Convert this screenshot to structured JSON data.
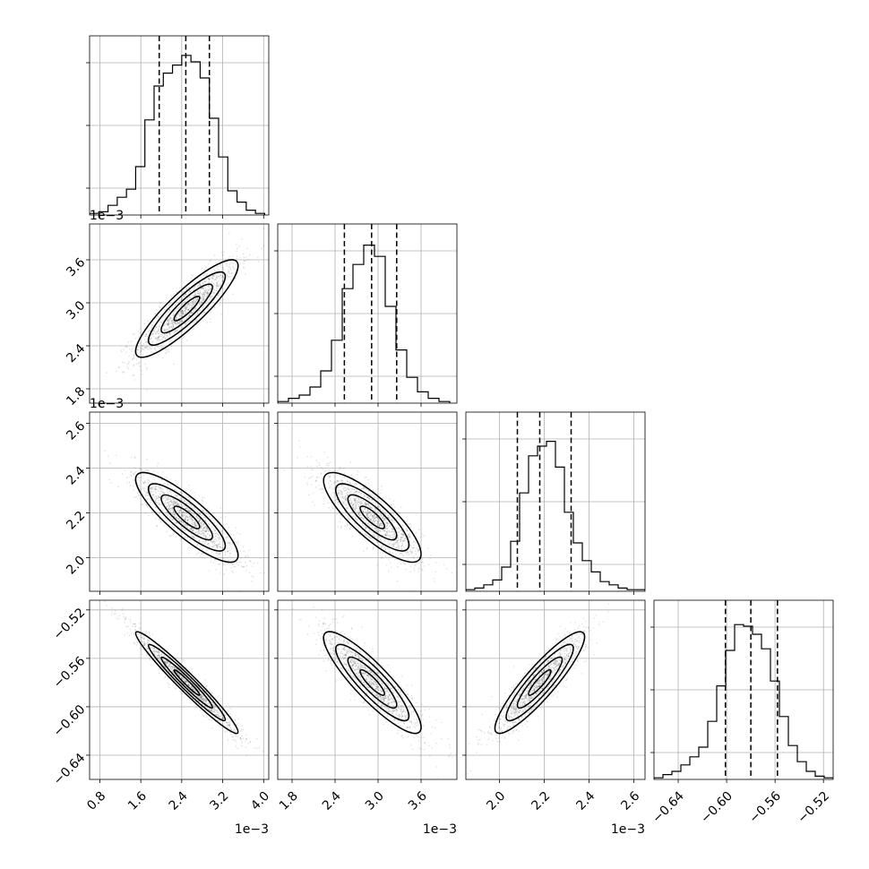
{
  "chart_data": {
    "type": "corner",
    "params": [
      {
        "ticks": [
          0.8,
          1.6,
          2.4,
          3.2,
          4.0
        ],
        "tick_labels": [
          "0.8",
          "1.6",
          "2.4",
          "3.2",
          "4.0"
        ],
        "offset_label": "1e−3"
      },
      {
        "ticks": [
          1.8,
          2.4,
          3.0,
          3.6
        ],
        "tick_labels": [
          "1.8",
          "2.4",
          "3.0",
          "3.6"
        ],
        "offset_label": "1e−3"
      },
      {
        "ticks": [
          2.0,
          2.2,
          2.4,
          2.6
        ],
        "tick_labels": [
          "2.0",
          "2.2",
          "2.4",
          "2.6"
        ],
        "offset_label": "1e−3"
      },
      {
        "ticks": [
          -0.64,
          -0.6,
          -0.56,
          -0.52
        ],
        "tick_labels": [
          "−0.64",
          "−0.60",
          "−0.56",
          "−0.52"
        ],
        "offset_label": ""
      }
    ],
    "ranges": [
      [
        0.6,
        4.1
      ],
      [
        1.6,
        4.1
      ],
      [
        1.85,
        2.65
      ],
      [
        -0.66,
        -0.512
      ]
    ],
    "histograms": [
      {
        "edges": [
          0.6,
          0.78,
          0.96,
          1.14,
          1.32,
          1.5,
          1.68,
          1.86,
          2.04,
          2.22,
          2.4,
          2.58,
          2.76,
          2.94,
          3.12,
          3.3,
          3.48,
          3.66,
          3.84,
          4.02
        ],
        "counts": [
          0.01,
          0.02,
          0.06,
          0.11,
          0.16,
          0.3,
          0.59,
          0.8,
          0.88,
          0.93,
          0.99,
          0.95,
          0.85,
          0.6,
          0.36,
          0.15,
          0.08,
          0.03,
          0.01
        ],
        "quantiles": [
          1.96,
          2.48,
          2.94
        ]
      },
      {
        "edges": [
          1.6,
          1.75,
          1.9,
          2.05,
          2.2,
          2.35,
          2.5,
          2.65,
          2.8,
          2.95,
          3.1,
          3.25,
          3.4,
          3.55,
          3.7,
          3.85,
          4.0
        ],
        "counts": [
          0.01,
          0.03,
          0.05,
          0.1,
          0.2,
          0.39,
          0.71,
          0.86,
          0.98,
          0.91,
          0.6,
          0.33,
          0.16,
          0.07,
          0.03,
          0.01
        ],
        "quantiles": [
          2.53,
          2.91,
          3.26
        ]
      },
      {
        "edges": [
          1.85,
          1.89,
          1.93,
          1.97,
          2.01,
          2.05,
          2.09,
          2.13,
          2.17,
          2.21,
          2.25,
          2.29,
          2.33,
          2.37,
          2.41,
          2.45,
          2.49,
          2.53,
          2.57,
          2.61,
          2.65
        ],
        "counts": [
          0.01,
          0.02,
          0.04,
          0.07,
          0.15,
          0.31,
          0.61,
          0.84,
          0.9,
          0.93,
          0.77,
          0.49,
          0.3,
          0.19,
          0.12,
          0.06,
          0.04,
          0.02,
          0.01,
          0.01
        ],
        "quantiles": [
          2.08,
          2.18,
          2.32
        ]
      },
      {
        "edges": [
          -0.66,
          -0.6526,
          -0.6452,
          -0.6378,
          -0.6304,
          -0.623,
          -0.6156,
          -0.6082,
          -0.6008,
          -0.5934,
          -0.586,
          -0.5786,
          -0.5712,
          -0.5638,
          -0.5564,
          -0.549,
          -0.5416,
          -0.5342,
          -0.5268,
          -0.5194,
          -0.512
        ],
        "counts": [
          0.01,
          0.03,
          0.05,
          0.09,
          0.14,
          0.2,
          0.36,
          0.58,
          0.8,
          0.96,
          0.95,
          0.9,
          0.81,
          0.61,
          0.39,
          0.21,
          0.11,
          0.05,
          0.02,
          0.01
        ],
        "quantiles": [
          -0.601,
          -0.58,
          -0.558
        ]
      }
    ],
    "pairs": [
      {
        "row": 1,
        "col": 0,
        "mean": [
          2.5,
          2.92
        ],
        "sd": [
          0.5,
          0.34
        ],
        "corr": 0.88
      },
      {
        "row": 2,
        "col": 0,
        "mean": [
          2.5,
          2.18
        ],
        "sd": [
          0.5,
          0.1
        ],
        "corr": -0.85
      },
      {
        "row": 2,
        "col": 1,
        "mean": [
          2.92,
          2.18
        ],
        "sd": [
          0.34,
          0.1
        ],
        "corr": -0.82
      },
      {
        "row": 3,
        "col": 0,
        "mean": [
          2.5,
          -0.58
        ],
        "sd": [
          0.5,
          0.021
        ],
        "corr": -0.97
      },
      {
        "row": 3,
        "col": 1,
        "mean": [
          2.92,
          -0.58
        ],
        "sd": [
          0.34,
          0.021
        ],
        "corr": -0.88
      },
      {
        "row": 3,
        "col": 2,
        "mean": [
          2.18,
          -0.58
        ],
        "sd": [
          0.1,
          0.021
        ],
        "corr": 0.9
      }
    ],
    "contour_levels_sigma": [
      0.5,
      1.0,
      1.5,
      2.0
    ],
    "grid": true
  }
}
